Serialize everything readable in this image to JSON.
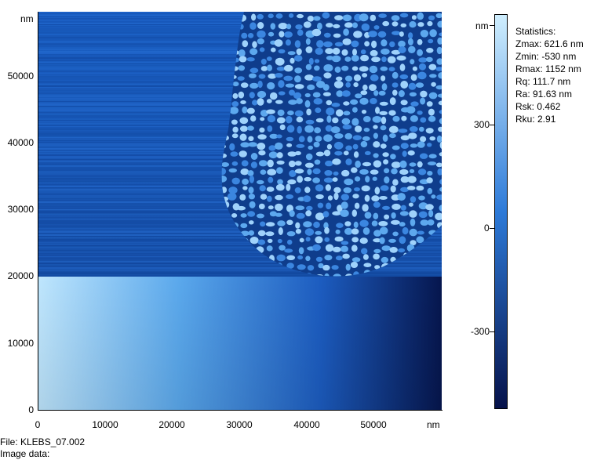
{
  "image": {
    "axes": {
      "x_unit": "nm",
      "y_unit": "nm",
      "x_ticks": [
        "0",
        "10000",
        "20000",
        "30000",
        "40000",
        "50000"
      ],
      "y_ticks": [
        "0",
        "10000",
        "20000",
        "30000",
        "40000",
        "50000"
      ]
    }
  },
  "color_scale": {
    "unit": "nm",
    "ticks": [
      "300",
      "0",
      "-300"
    ],
    "colors": {
      "top": "#cfeefe",
      "middle": "#2d7ad8",
      "bottom": "#06124a"
    }
  },
  "statistics": {
    "title": "Statistics:",
    "lines": [
      "Zmax: 621.6 nm",
      "Zmin: -530 nm",
      "Rmax: 1152 nm",
      "Rq: 111.7 nm",
      "Ra: 91.63 nm",
      "Rsk: 0.462",
      "Rku: 2.91"
    ]
  },
  "footer": {
    "file": "File: KLEBS_07.002",
    "image_data": "Image data:"
  }
}
